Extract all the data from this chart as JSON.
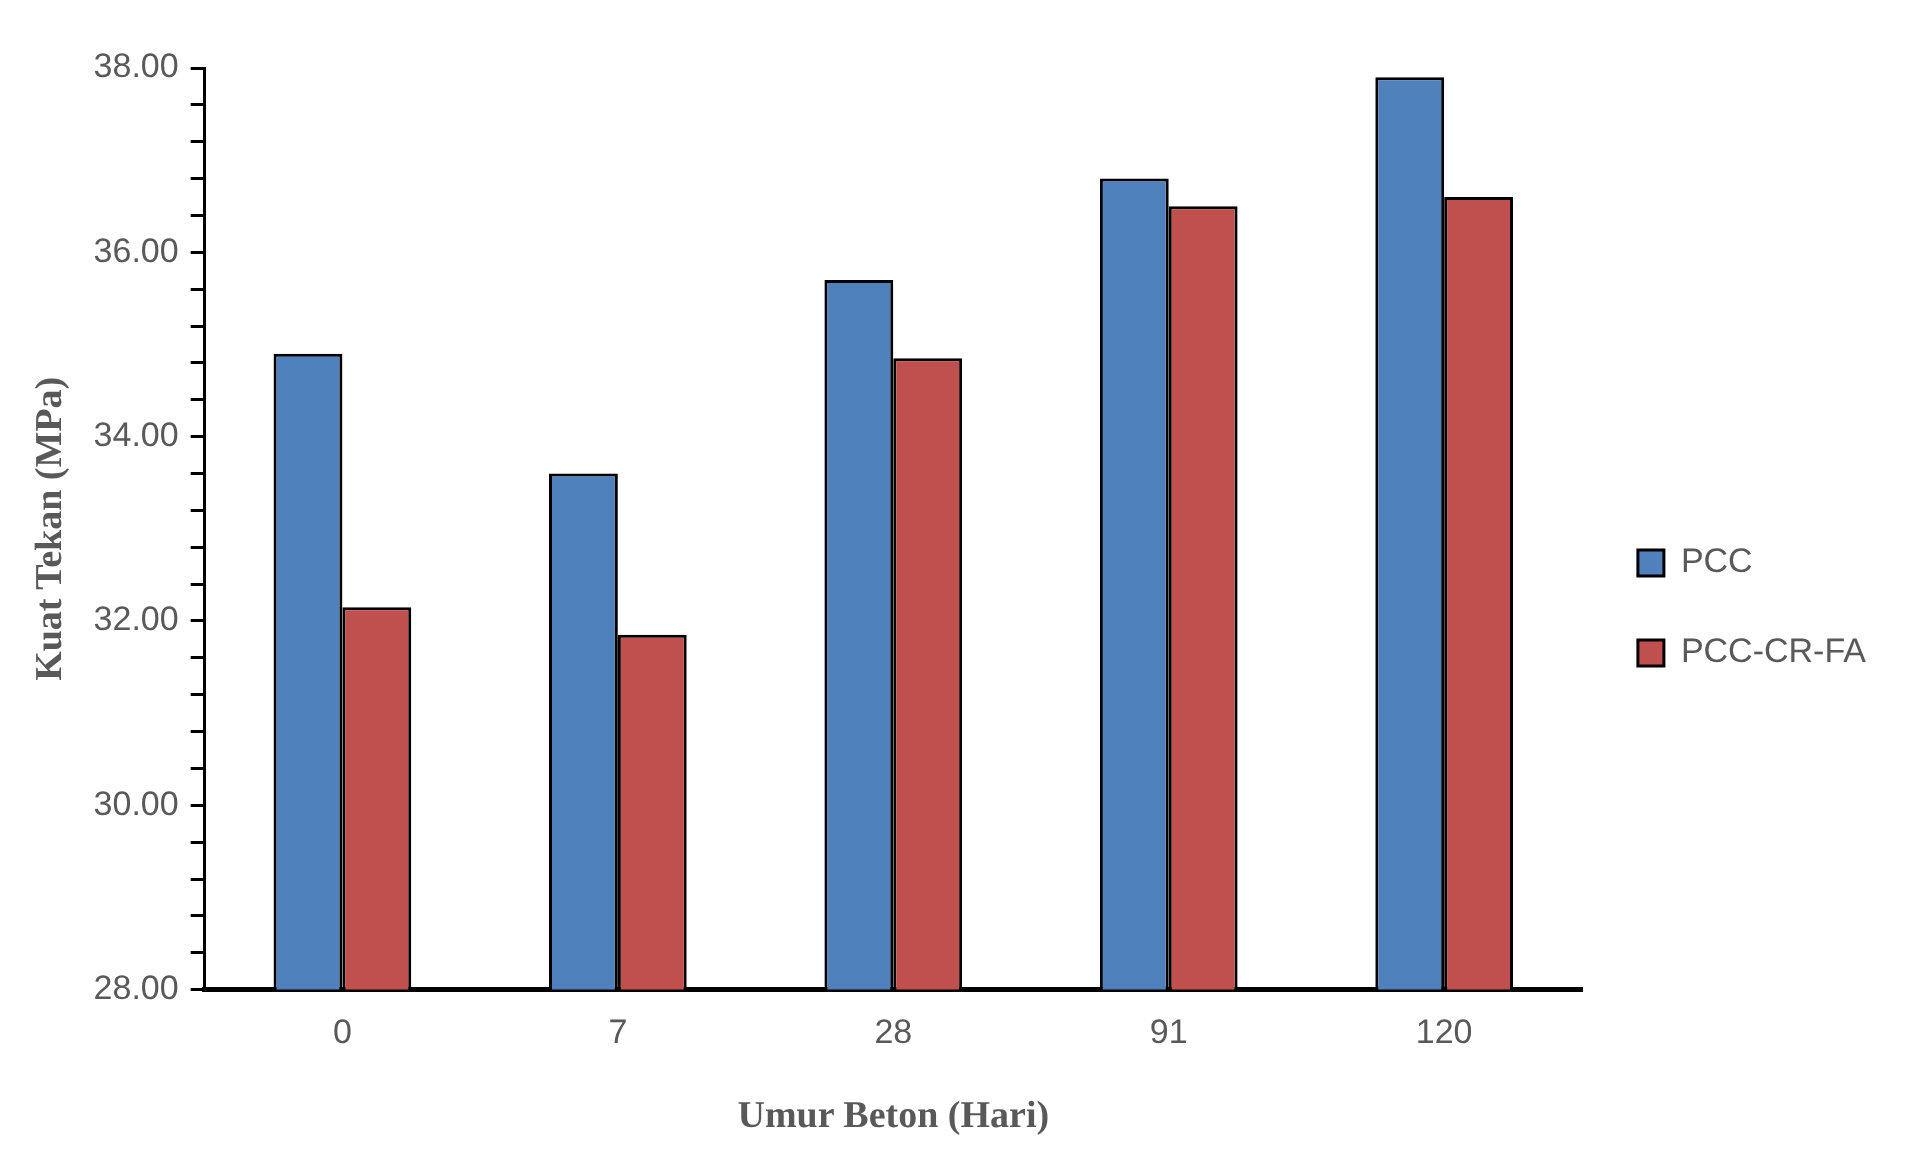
{
  "chart_data": {
    "type": "bar",
    "xlabel": "Umur Beton (Hari)",
    "ylabel": "Kuat Tekan (MPa)",
    "categories": [
      "0",
      "7",
      "28",
      "91",
      "120"
    ],
    "series": [
      {
        "name": "PCC",
        "color": "#4f81bd",
        "values": [
          34.9,
          33.6,
          35.7,
          36.8,
          37.9
        ]
      },
      {
        "name": "PCC-CR-FA",
        "color": "#c0504d",
        "values": [
          32.15,
          31.85,
          34.85,
          36.5,
          36.6
        ]
      }
    ],
    "ylim": [
      28,
      38
    ],
    "yticks": [
      {
        "value": 28,
        "label": "28.00"
      },
      {
        "value": 28.4,
        "label": null
      },
      {
        "value": 28.8,
        "label": null
      },
      {
        "value": 29.2,
        "label": null
      },
      {
        "value": 29.6,
        "label": null
      },
      {
        "value": 30,
        "label": "30.00"
      },
      {
        "value": 30.4,
        "label": null
      },
      {
        "value": 30.8,
        "label": null
      },
      {
        "value": 31.2,
        "label": null
      },
      {
        "value": 31.6,
        "label": null
      },
      {
        "value": 32,
        "label": "32.00"
      },
      {
        "value": 32.4,
        "label": null
      },
      {
        "value": 32.8,
        "label": null
      },
      {
        "value": 33.2,
        "label": null
      },
      {
        "value": 33.6,
        "label": null
      },
      {
        "value": 34,
        "label": "34.00"
      },
      {
        "value": 34.4,
        "label": null
      },
      {
        "value": 34.8,
        "label": null
      },
      {
        "value": 35.2,
        "label": null
      },
      {
        "value": 35.6,
        "label": null
      },
      {
        "value": 36,
        "label": "36.00"
      },
      {
        "value": 36.4,
        "label": null
      },
      {
        "value": 36.8,
        "label": null
      },
      {
        "value": 37.2,
        "label": null
      },
      {
        "value": 37.6,
        "label": null
      },
      {
        "value": 38,
        "label": "38.00"
      }
    ],
    "grid": false,
    "legend": "right"
  }
}
